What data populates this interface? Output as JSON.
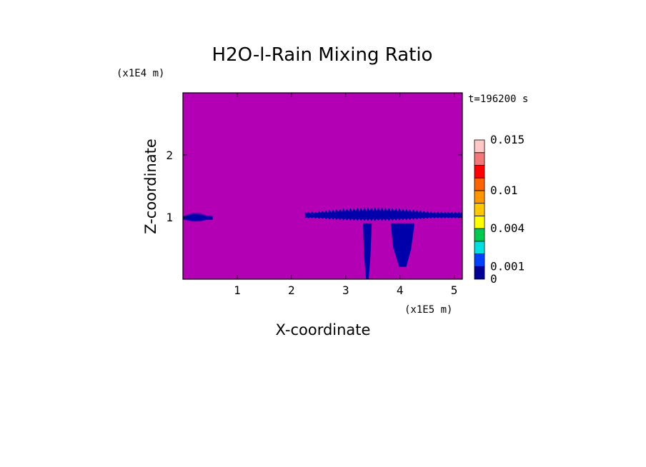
{
  "chart_data": {
    "type": "heatmap",
    "title": "H2O-l-Rain Mixing Ratio",
    "time_label": "t=196200 s",
    "xlabel": "X-coordinate",
    "ylabel": "Z-coordinate",
    "x_multiplier_label": "(x1E5 m)",
    "y_multiplier_label": "(x1E4 m)",
    "xlim": [
      0,
      5.15
    ],
    "ylim": [
      0,
      3.0
    ],
    "x_ticks": [
      {
        "value": 1,
        "label": "1"
      },
      {
        "value": 2,
        "label": "2"
      },
      {
        "value": 3,
        "label": "3"
      },
      {
        "value": 4,
        "label": "4"
      },
      {
        "value": 5,
        "label": "5"
      }
    ],
    "y_ticks": [
      {
        "value": 1,
        "label": "1"
      },
      {
        "value": 2,
        "label": "2"
      }
    ],
    "background_color": "#b400b4",
    "field_color": "#0000aa",
    "colorbar": {
      "levels": [
        0,
        0.001,
        0.002,
        0.003,
        0.004,
        0.006,
        0.008,
        0.01,
        0.012,
        0.014,
        0.015
      ],
      "colors": [
        "#000096",
        "#0040ff",
        "#00e0e0",
        "#00c850",
        "#ffff00",
        "#ffc800",
        "#ff9600",
        "#ff6400",
        "#ff0000",
        "#f07878",
        "#ffc8c8"
      ],
      "labels": [
        {
          "value": 0,
          "label": "0"
        },
        {
          "value": 0.001,
          "label": "0.001"
        },
        {
          "value": 0.004,
          "label": "0.004"
        },
        {
          "value": 0.01,
          "label": "0.01"
        },
        {
          "value": 0.015,
          "label": "0.015"
        }
      ]
    },
    "rain_regions": [
      {
        "name": "left-layer",
        "x_range": [
          0,
          0.55
        ],
        "z_center": 0.98,
        "z_half_thickness": 0.1
      },
      {
        "name": "right-layer",
        "x_range": [
          2.25,
          5.15
        ],
        "z_center": 1.02,
        "z_half_thickness": 0.14
      },
      {
        "name": "shaft-1",
        "x_center": 3.4,
        "x_half_width": 0.08,
        "z_range": [
          0,
          0.9
        ]
      },
      {
        "name": "shaft-2",
        "x_center": 4.05,
        "x_half_width": 0.22,
        "z_range": [
          0.2,
          0.9
        ]
      }
    ]
  }
}
